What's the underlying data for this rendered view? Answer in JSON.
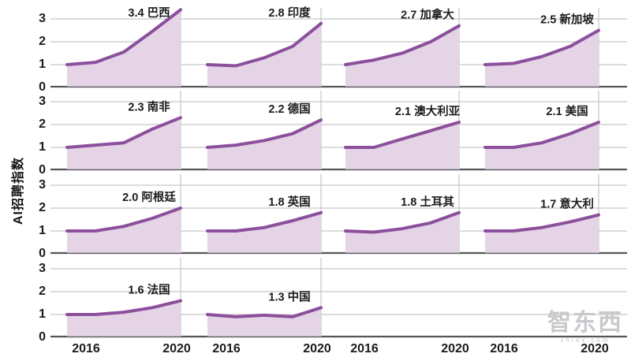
{
  "watermark": {
    "text": "智东西",
    "subtext": "zhidx.com"
  },
  "chart_data": {
    "type": "area",
    "layout": "small-multiples-grid",
    "rows": 4,
    "cols": 4,
    "title": "",
    "xlabel": "",
    "ylabel": "AI招聘指数",
    "x": [
      2016,
      2017,
      2018,
      2019,
      2020
    ],
    "x_tick_labels": [
      "2016",
      "2020"
    ],
    "y_ticks": [
      3,
      2,
      1,
      0
    ],
    "ylim": [
      0,
      3.5
    ],
    "grid": true,
    "legend": "none",
    "colors": {
      "line": "#8c4f9c",
      "fill": "#e4d4e6",
      "grid": "#c6c6c8",
      "axis": "#56565a",
      "text": "#1c1c1c",
      "watermark": "#c9c9cd"
    },
    "series": [
      {
        "id": "brazil",
        "label": "3.4 巴西",
        "final_value": 3.4,
        "values": [
          1.0,
          1.1,
          1.55,
          2.45,
          3.4
        ]
      },
      {
        "id": "india",
        "label": "2.8 印度",
        "final_value": 2.8,
        "values": [
          1.0,
          0.95,
          1.3,
          1.8,
          2.8
        ]
      },
      {
        "id": "canada",
        "label": "2.7 加拿大",
        "final_value": 2.7,
        "values": [
          1.0,
          1.2,
          1.5,
          2.0,
          2.7
        ]
      },
      {
        "id": "singapore",
        "label": "2.5 新加坡",
        "final_value": 2.5,
        "values": [
          1.0,
          1.05,
          1.35,
          1.8,
          2.5
        ]
      },
      {
        "id": "south-africa",
        "label": "2.3 南非",
        "final_value": 2.3,
        "values": [
          1.0,
          1.1,
          1.2,
          1.8,
          2.3
        ]
      },
      {
        "id": "germany",
        "label": "2.2 德国",
        "final_value": 2.2,
        "values": [
          1.0,
          1.1,
          1.3,
          1.6,
          2.2
        ]
      },
      {
        "id": "australia",
        "label": "2.1 澳大利亚",
        "final_value": 2.1,
        "values": [
          1.0,
          1.0,
          1.37,
          1.73,
          2.1
        ]
      },
      {
        "id": "usa",
        "label": "2.1 美国",
        "final_value": 2.1,
        "values": [
          1.0,
          1.0,
          1.2,
          1.6,
          2.1
        ]
      },
      {
        "id": "argentina",
        "label": "2.0 阿根廷",
        "final_value": 2.0,
        "values": [
          1.0,
          1.0,
          1.2,
          1.55,
          2.0
        ]
      },
      {
        "id": "uk",
        "label": "1.8 英国",
        "final_value": 1.8,
        "values": [
          1.0,
          1.0,
          1.15,
          1.45,
          1.8
        ]
      },
      {
        "id": "turkey",
        "label": "1.8 土耳其",
        "final_value": 1.8,
        "values": [
          1.0,
          0.95,
          1.1,
          1.35,
          1.8
        ]
      },
      {
        "id": "italy",
        "label": "1.7 意大利",
        "final_value": 1.7,
        "values": [
          1.0,
          1.0,
          1.15,
          1.4,
          1.7
        ]
      },
      {
        "id": "france",
        "label": "1.6 法国",
        "final_value": 1.6,
        "values": [
          1.0,
          1.0,
          1.1,
          1.3,
          1.6
        ]
      },
      {
        "id": "china",
        "label": "1.3 中国",
        "final_value": 1.3,
        "values": [
          1.0,
          0.9,
          0.97,
          0.9,
          1.3
        ]
      }
    ]
  }
}
